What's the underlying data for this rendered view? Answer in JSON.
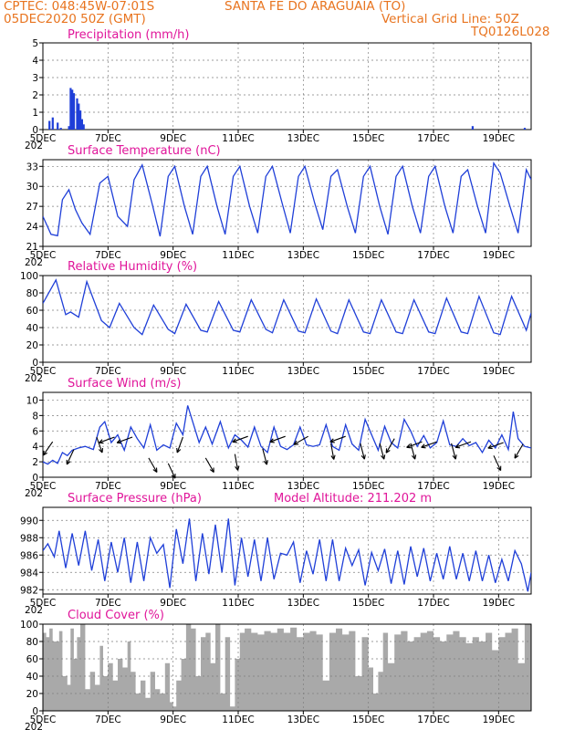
{
  "header": {
    "org_coords": "CPTEC:   048:45W-07:01S",
    "location": "SANTA FE DO ARAGUAIA (TO)",
    "run": "05DEC2020 50Z (GMT)",
    "grid_note": "Vertical Grid Line: 50Z",
    "model_code": "TQ0126L028"
  },
  "colors": {
    "header": "#e8741f",
    "title": "#e0159a",
    "line": "#1f3fd8",
    "cloud": "#a9a9a9",
    "grid": "#7f7f7f"
  },
  "x_axis": {
    "ticks": [
      "5DEC",
      "7DEC",
      "9DEC",
      "11DEC",
      "13DEC",
      "15DEC",
      "17DEC",
      "19DEC"
    ],
    "tick_days": [
      5,
      7,
      9,
      11,
      13,
      15,
      17,
      19
    ],
    "year_fragment": "202",
    "range_days": [
      5,
      20
    ]
  },
  "chart_data": [
    {
      "id": "precip",
      "type": "bar",
      "title": "Precipitation (mm/h)",
      "ylim": [
        0,
        5
      ],
      "yticks": [
        0,
        1,
        2,
        3,
        4,
        5
      ],
      "x": [
        5.2,
        5.3,
        5.45,
        5.55,
        5.8,
        5.85,
        5.9,
        5.95,
        6.05,
        6.1,
        6.15,
        6.2,
        6.25,
        18.2,
        19.8
      ],
      "values": [
        0.5,
        0.7,
        0.4,
        0.1,
        0.2,
        2.4,
        2.3,
        2.1,
        1.8,
        1.5,
        1.1,
        0.6,
        0.3,
        0.2,
        0.1
      ]
    },
    {
      "id": "temp",
      "type": "line",
      "title": "Surface Temperature (nC)",
      "ylim": [
        21,
        34
      ],
      "yticks": [
        21,
        24,
        27,
        30,
        33
      ],
      "x": [
        5.0,
        5.25,
        5.45,
        5.6,
        5.8,
        6.0,
        6.2,
        6.45,
        6.75,
        7.0,
        7.3,
        7.6,
        7.8,
        8.05,
        8.35,
        8.6,
        8.85,
        9.05,
        9.35,
        9.6,
        9.85,
        10.05,
        10.35,
        10.6,
        10.85,
        11.05,
        11.35,
        11.6,
        11.85,
        12.05,
        12.35,
        12.6,
        12.85,
        13.05,
        13.35,
        13.6,
        13.85,
        14.05,
        14.35,
        14.6,
        14.85,
        15.05,
        15.35,
        15.6,
        15.85,
        16.05,
        16.35,
        16.6,
        16.85,
        17.05,
        17.35,
        17.6,
        17.85,
        18.05,
        18.35,
        18.6,
        18.85,
        19.05,
        19.35,
        19.6,
        19.85,
        20.0
      ],
      "values": [
        25.5,
        22.8,
        22.6,
        28.0,
        29.5,
        26.5,
        24.5,
        22.8,
        30.5,
        31.5,
        25.5,
        24.0,
        31.0,
        33.2,
        27.5,
        22.5,
        31.5,
        33.0,
        27.0,
        22.8,
        31.5,
        33.0,
        27.0,
        22.8,
        31.5,
        33.0,
        27.0,
        23.0,
        31.5,
        33.0,
        27.5,
        23.0,
        31.5,
        33.0,
        27.5,
        23.5,
        31.5,
        32.5,
        27.0,
        23.0,
        31.5,
        33.0,
        27.0,
        22.8,
        31.5,
        33.0,
        27.0,
        23.0,
        31.5,
        33.0,
        27.0,
        23.0,
        31.5,
        32.5,
        27.0,
        23.0,
        33.5,
        32.0,
        27.0,
        23.0,
        32.5,
        31.0
      ]
    },
    {
      "id": "rh",
      "type": "line",
      "title": "Relative Humidity (%)",
      "ylim": [
        0,
        100
      ],
      "yticks": [
        0,
        20,
        40,
        60,
        80,
        100
      ],
      "x": [
        5.0,
        5.4,
        5.7,
        5.85,
        6.1,
        6.35,
        6.8,
        7.05,
        7.35,
        7.8,
        8.05,
        8.4,
        8.85,
        9.05,
        9.4,
        9.85,
        10.05,
        10.4,
        10.85,
        11.05,
        11.4,
        11.85,
        12.05,
        12.4,
        12.85,
        13.05,
        13.4,
        13.85,
        14.05,
        14.4,
        14.85,
        15.05,
        15.4,
        15.85,
        16.05,
        16.4,
        16.85,
        17.05,
        17.4,
        17.85,
        18.05,
        18.4,
        18.85,
        19.05,
        19.4,
        19.85,
        20.0
      ],
      "values": [
        68,
        95,
        55,
        58,
        52,
        93,
        48,
        40,
        68,
        40,
        32,
        66,
        38,
        33,
        67,
        37,
        35,
        70,
        37,
        35,
        72,
        38,
        34,
        72,
        36,
        34,
        73,
        36,
        33,
        72,
        35,
        33,
        72,
        35,
        33,
        72,
        35,
        33,
        74,
        35,
        33,
        76,
        34,
        32,
        76,
        37,
        57
      ]
    },
    {
      "id": "wind",
      "type": "line",
      "title": "Surface Wind (m/s)",
      "ylim": [
        0,
        11
      ],
      "yticks": [
        0,
        2,
        4,
        6,
        8,
        10
      ],
      "x": [
        5.0,
        5.15,
        5.3,
        5.45,
        5.6,
        5.75,
        5.9,
        6.1,
        6.3,
        6.55,
        6.75,
        6.9,
        7.1,
        7.3,
        7.5,
        7.7,
        7.9,
        8.1,
        8.3,
        8.5,
        8.7,
        8.9,
        9.1,
        9.3,
        9.45,
        9.6,
        9.8,
        10.0,
        10.2,
        10.45,
        10.7,
        10.9,
        11.1,
        11.3,
        11.5,
        11.7,
        11.9,
        12.1,
        12.3,
        12.5,
        12.7,
        12.9,
        13.1,
        13.3,
        13.5,
        13.7,
        13.9,
        14.1,
        14.3,
        14.5,
        14.7,
        14.9,
        15.1,
        15.3,
        15.5,
        15.7,
        15.9,
        16.1,
        16.3,
        16.5,
        16.7,
        16.9,
        17.1,
        17.3,
        17.5,
        17.7,
        17.9,
        18.1,
        18.3,
        18.5,
        18.7,
        18.9,
        19.1,
        19.3,
        19.45,
        19.6,
        19.8,
        20.0
      ],
      "values": [
        2.0,
        1.7,
        2.2,
        1.8,
        3.2,
        2.8,
        3.5,
        3.8,
        4.0,
        3.6,
        6.5,
        7.2,
        4.5,
        5.5,
        3.5,
        6.5,
        5.0,
        3.8,
        6.8,
        3.5,
        4.2,
        3.8,
        7.0,
        5.5,
        9.3,
        7.2,
        4.5,
        6.5,
        4.3,
        7.2,
        3.8,
        5.5,
        4.8,
        3.9,
        6.5,
        4.0,
        3.2,
        6.5,
        4.0,
        3.6,
        4.2,
        6.5,
        4.2,
        4.0,
        4.2,
        6.8,
        4.0,
        3.5,
        6.8,
        4.3,
        3.5,
        7.5,
        5.5,
        3.5,
        6.6,
        4.5,
        3.8,
        7.5,
        6.0,
        4.0,
        5.4,
        3.8,
        4.5,
        7.3,
        4.2,
        4.0,
        5.0,
        4.1,
        4.5,
        3.2,
        4.8,
        3.8,
        5.5,
        3.6,
        8.5,
        5.0,
        4.0,
        3.8
      ],
      "arrows": [
        [
          5.3,
          4.6,
          215
        ],
        [
          5.95,
          3.6,
          205
        ],
        [
          6.65,
          5.2,
          160
        ],
        [
          7.2,
          5.2,
          250
        ],
        [
          7.75,
          5.2,
          250
        ],
        [
          8.25,
          2.5,
          150
        ],
        [
          8.85,
          1.8,
          155
        ],
        [
          9.3,
          5.2,
          200
        ],
        [
          10.0,
          2.5,
          150
        ],
        [
          10.9,
          3.0,
          170
        ],
        [
          11.3,
          5.3,
          250
        ],
        [
          11.75,
          3.7,
          165
        ],
        [
          12.45,
          5.3,
          250
        ],
        [
          13.15,
          5.3,
          240
        ],
        [
          13.85,
          4.4,
          170
        ],
        [
          14.3,
          5.3,
          250
        ],
        [
          14.75,
          4.4,
          165
        ],
        [
          15.35,
          4.4,
          165
        ],
        [
          15.8,
          5.0,
          210
        ],
        [
          16.3,
          4.4,
          165
        ],
        [
          16.65,
          4.6,
          250
        ],
        [
          17.1,
          4.6,
          250
        ],
        [
          17.55,
          4.4,
          165
        ],
        [
          18.15,
          4.6,
          250
        ],
        [
          18.85,
          2.8,
          155
        ],
        [
          19.15,
          4.5,
          250
        ],
        [
          19.75,
          4.3,
          210
        ]
      ]
    },
    {
      "id": "pres",
      "type": "line",
      "title": "Surface Pressure (hPa)",
      "subtitle": "Model Altitude: 211.202 m",
      "ylim": [
        981.5,
        991.5
      ],
      "yticks": [
        982,
        984,
        986,
        988,
        990
      ],
      "x": [
        5.0,
        5.15,
        5.35,
        5.5,
        5.7,
        5.9,
        6.1,
        6.3,
        6.5,
        6.7,
        6.9,
        7.1,
        7.3,
        7.5,
        7.7,
        7.9,
        8.1,
        8.3,
        8.5,
        8.7,
        8.9,
        9.1,
        9.3,
        9.5,
        9.7,
        9.9,
        10.1,
        10.3,
        10.5,
        10.7,
        10.9,
        11.1,
        11.3,
        11.5,
        11.7,
        11.9,
        12.1,
        12.3,
        12.5,
        12.7,
        12.9,
        13.1,
        13.3,
        13.5,
        13.7,
        13.9,
        14.1,
        14.3,
        14.5,
        14.7,
        14.9,
        15.1,
        15.3,
        15.5,
        15.7,
        15.9,
        16.1,
        16.3,
        16.5,
        16.7,
        16.9,
        17.1,
        17.3,
        17.5,
        17.7,
        17.9,
        18.1,
        18.3,
        18.5,
        18.7,
        18.9,
        19.1,
        19.3,
        19.5,
        19.7,
        19.9,
        20.0
      ],
      "values": [
        986.5,
        987.3,
        985.8,
        988.8,
        984.5,
        988.5,
        984.8,
        988.8,
        984.2,
        987.8,
        983.0,
        987.5,
        984.0,
        988.0,
        982.8,
        987.5,
        983.0,
        988.0,
        986.2,
        987.2,
        982.2,
        989.0,
        985.0,
        990.2,
        983.0,
        988.5,
        983.8,
        989.5,
        984.0,
        990.2,
        982.5,
        988.0,
        983.5,
        987.8,
        983.0,
        988.0,
        983.2,
        986.2,
        986.0,
        987.5,
        982.8,
        986.5,
        983.8,
        987.8,
        983.0,
        987.8,
        983.0,
        986.8,
        984.8,
        986.6,
        982.5,
        986.3,
        984.2,
        986.7,
        982.7,
        986.5,
        982.6,
        987.0,
        983.5,
        986.8,
        983.0,
        986.2,
        983.2,
        987.0,
        983.2,
        986.2,
        983.0,
        986.5,
        983.0,
        986.0,
        982.8,
        985.5,
        983.0,
        986.5,
        985.0,
        981.8,
        984.0
      ]
    },
    {
      "id": "cloud",
      "type": "area",
      "title": "Cloud Cover (%)",
      "ylim": [
        0,
        100
      ],
      "yticks": [
        0,
        20,
        40,
        60,
        80,
        100
      ],
      "x": [
        5.0,
        5.1,
        5.2,
        5.3,
        5.5,
        5.6,
        5.75,
        5.85,
        5.95,
        6.05,
        6.15,
        6.3,
        6.45,
        6.6,
        6.75,
        6.85,
        7.0,
        7.15,
        7.3,
        7.45,
        7.6,
        7.7,
        7.85,
        8.0,
        8.15,
        8.3,
        8.45,
        8.6,
        8.75,
        8.9,
        9.0,
        9.1,
        9.25,
        9.4,
        9.55,
        9.7,
        9.85,
        10.0,
        10.15,
        10.3,
        10.45,
        10.6,
        10.75,
        10.9,
        11.05,
        11.2,
        11.4,
        11.6,
        11.8,
        12.0,
        12.2,
        12.4,
        12.6,
        12.8,
        13.0,
        13.2,
        13.4,
        13.6,
        13.8,
        14.0,
        14.2,
        14.4,
        14.6,
        14.8,
        15.0,
        15.15,
        15.3,
        15.45,
        15.6,
        15.8,
        16.0,
        16.2,
        16.4,
        16.6,
        16.8,
        17.0,
        17.2,
        17.4,
        17.6,
        17.8,
        18.0,
        18.2,
        18.4,
        18.6,
        18.8,
        19.0,
        19.2,
        19.4,
        19.6,
        19.8,
        20.0
      ],
      "values": [
        90,
        85,
        95,
        80,
        92,
        40,
        30,
        95,
        60,
        85,
        100,
        25,
        45,
        30,
        75,
        40,
        55,
        35,
        60,
        50,
        80,
        45,
        20,
        35,
        15,
        45,
        25,
        20,
        55,
        10,
        5,
        35,
        60,
        100,
        95,
        40,
        85,
        90,
        55,
        100,
        20,
        85,
        5,
        60,
        90,
        95,
        90,
        88,
        92,
        90,
        95,
        90,
        96,
        85,
        90,
        92,
        88,
        35,
        90,
        95,
        88,
        92,
        40,
        85,
        50,
        20,
        45,
        90,
        55,
        88,
        92,
        80,
        85,
        90,
        92,
        85,
        80,
        88,
        92,
        85,
        78,
        85,
        80,
        90,
        70,
        85,
        90,
        95,
        55,
        100,
        90
      ]
    }
  ]
}
